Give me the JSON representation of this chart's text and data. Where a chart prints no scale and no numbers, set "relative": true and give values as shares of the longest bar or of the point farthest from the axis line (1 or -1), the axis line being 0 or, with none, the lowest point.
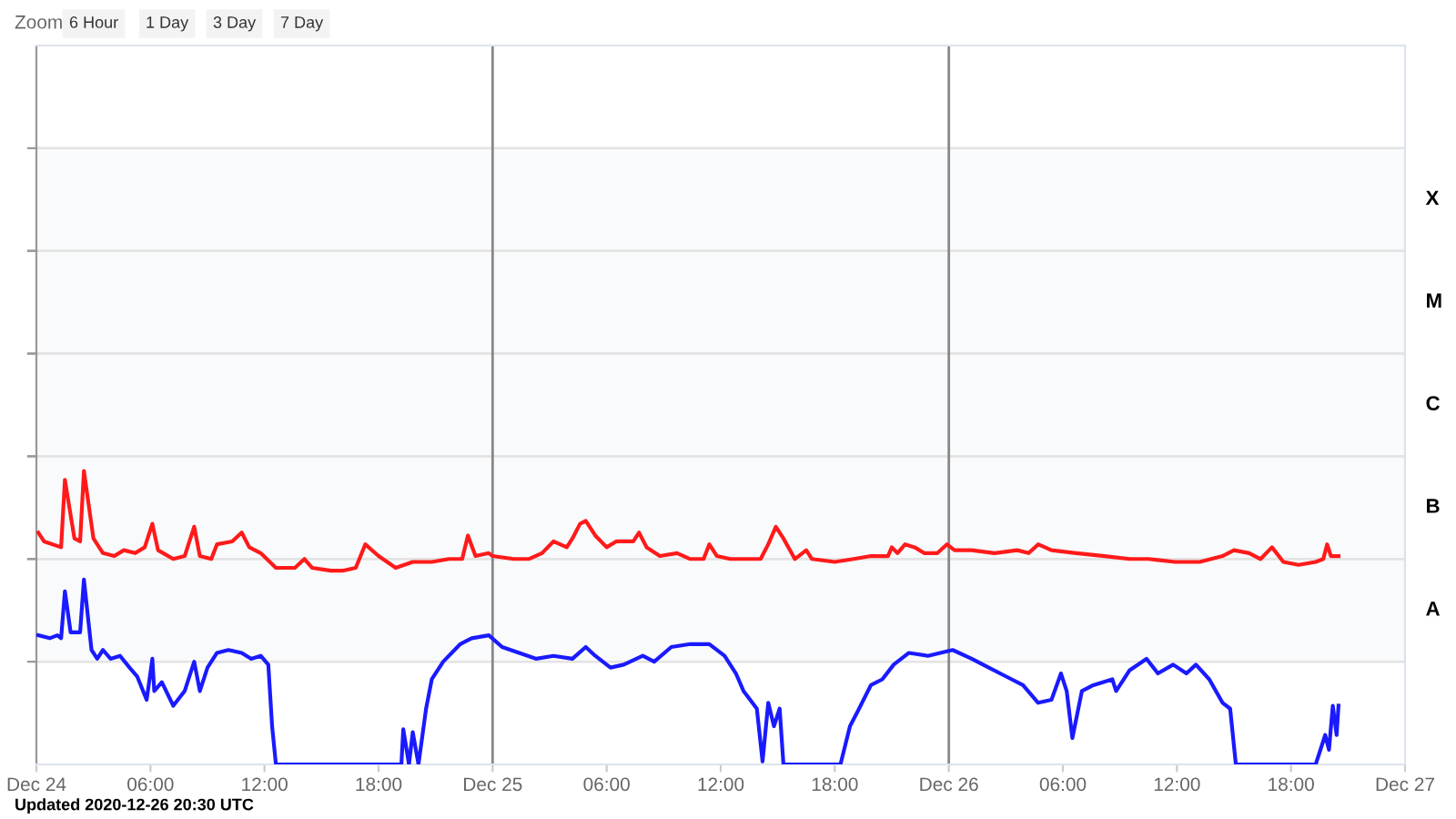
{
  "chart_data": {
    "type": "line",
    "relative": true,
    "legend": false,
    "annotations": [
      "Zoom",
      "6 Hour",
      "1 Day",
      "3 Day",
      "7 Day",
      "Updated 2020-12-26 20:30 UTC"
    ],
    "bands": [
      {
        "axis": "y",
        "from": 0.35,
        "to": 0.7,
        "label": "A",
        "color": "#f9fafc"
      },
      {
        "axis": "y",
        "from": 0.7,
        "to": 1.05,
        "label": "B",
        "color": "#f9fafc"
      },
      {
        "axis": "y",
        "from": 1.05,
        "to": 1.4,
        "label": "C",
        "color": "#f9fafc"
      },
      {
        "axis": "y",
        "from": 1.4,
        "to": 1.75,
        "label": "M",
        "color": "#f9fafc"
      },
      {
        "axis": "y",
        "from": 1.75,
        "to": 2.1,
        "label": "X",
        "color": "#f9fafc"
      }
    ],
    "xlim": [
      "2020-12-24T00:00",
      "2020-12-27T00:00"
    ],
    "xticks": [
      {
        "value": "2020-12-24T00:00",
        "label": "Dec 24"
      },
      {
        "value": "2020-12-24T06:00",
        "label": "06:00"
      },
      {
        "value": "2020-12-24T12:00",
        "label": "12:00"
      },
      {
        "value": "2020-12-24T18:00",
        "label": "18:00"
      },
      {
        "value": "2020-12-25T00:00",
        "label": "Dec 25"
      },
      {
        "value": "2020-12-25T06:00",
        "label": "06:00"
      },
      {
        "value": "2020-12-25T12:00",
        "label": "12:00"
      },
      {
        "value": "2020-12-25T18:00",
        "label": "18:00"
      },
      {
        "value": "2020-12-26T00:00",
        "label": "Dec 26"
      },
      {
        "value": "2020-12-26T06:00",
        "label": "06:00"
      },
      {
        "value": "2020-12-26T12:00",
        "label": "12:00"
      },
      {
        "value": "2020-12-26T18:00",
        "label": "18:00"
      },
      {
        "value": "2020-12-27T00:00",
        "label": "Dec 27"
      }
    ],
    "ref_lines": [
      {
        "axis": "x",
        "value": "2020-12-25T00:00",
        "color": "#888888"
      },
      {
        "axis": "x",
        "value": "2020-12-26T00:00",
        "color": "#888888"
      }
    ],
    "series": [
      {
        "color": "#ff1a1a",
        "x": [
          "2020-12-24T00:06",
          "2020-12-24T00:24",
          "2020-12-24T01:18",
          "2020-12-24T01:30",
          "2020-12-24T02:00",
          "2020-12-24T02:18",
          "2020-12-24T02:30",
          "2020-12-24T03:00",
          "2020-12-24T03:30",
          "2020-12-24T04:06",
          "2020-12-24T04:36",
          "2020-12-24T05:12",
          "2020-12-24T05:42",
          "2020-12-24T06:06",
          "2020-12-24T06:24",
          "2020-12-24T07:12",
          "2020-12-24T07:48",
          "2020-12-24T08:18",
          "2020-12-24T08:36",
          "2020-12-24T09:12",
          "2020-12-24T09:30",
          "2020-12-24T10:18",
          "2020-12-24T10:48",
          "2020-12-24T11:12",
          "2020-12-24T11:48",
          "2020-12-24T12:36",
          "2020-12-24T13:36",
          "2020-12-24T14:06",
          "2020-12-24T14:30",
          "2020-12-24T15:30",
          "2020-12-24T16:06",
          "2020-12-24T16:48",
          "2020-12-24T17:18",
          "2020-12-24T18:00",
          "2020-12-24T18:54",
          "2020-12-24T19:48",
          "2020-12-24T20:48",
          "2020-12-24T21:42",
          "2020-12-24T22:24",
          "2020-12-24T22:42",
          "2020-12-24T23:06",
          "2020-12-24T23:48",
          "2020-12-25T00:00",
          "2020-12-25T01:06",
          "2020-12-25T01:54",
          "2020-12-25T02:36",
          "2020-12-25T03:12",
          "2020-12-25T03:54",
          "2020-12-25T04:12",
          "2020-12-25T04:36",
          "2020-12-25T04:54",
          "2020-12-25T05:24",
          "2020-12-25T06:00",
          "2020-12-25T06:30",
          "2020-12-25T07:24",
          "2020-12-25T07:42",
          "2020-12-25T08:06",
          "2020-12-25T08:48",
          "2020-12-25T09:42",
          "2020-12-25T10:24",
          "2020-12-25T11:06",
          "2020-12-25T11:24",
          "2020-12-25T11:48",
          "2020-12-25T12:30",
          "2020-12-25T13:06",
          "2020-12-25T14:06",
          "2020-12-25T14:30",
          "2020-12-25T14:54",
          "2020-12-25T15:18",
          "2020-12-25T15:54",
          "2020-12-25T16:30",
          "2020-12-25T16:48",
          "2020-12-25T18:00",
          "2020-12-25T19:00",
          "2020-12-25T19:54",
          "2020-12-25T20:48",
          "2020-12-25T21:00",
          "2020-12-25T21:18",
          "2020-12-25T21:42",
          "2020-12-25T22:12",
          "2020-12-25T22:42",
          "2020-12-25T23:24",
          "2020-12-25T23:54",
          "2020-12-26T00:18",
          "2020-12-26T01:12",
          "2020-12-26T02:24",
          "2020-12-26T03:36",
          "2020-12-26T04:12",
          "2020-12-26T04:42",
          "2020-12-26T05:24",
          "2020-12-26T06:42",
          "2020-12-26T08:12",
          "2020-12-26T09:30",
          "2020-12-26T10:30",
          "2020-12-26T11:54",
          "2020-12-26T13:12",
          "2020-12-26T14:24",
          "2020-12-26T15:00",
          "2020-12-26T15:48",
          "2020-12-26T16:24",
          "2020-12-26T17:00",
          "2020-12-26T17:36",
          "2020-12-26T18:24",
          "2020-12-26T19:18",
          "2020-12-26T19:42",
          "2020-12-26T19:54",
          "2020-12-26T20:06",
          "2020-12-26T20:30"
        ],
        "values": [
          0.79,
          0.76,
          0.74,
          0.97,
          0.77,
          0.76,
          1.0,
          0.77,
          0.72,
          0.71,
          0.73,
          0.72,
          0.74,
          0.82,
          0.73,
          0.7,
          0.71,
          0.81,
          0.71,
          0.7,
          0.75,
          0.76,
          0.79,
          0.74,
          0.72,
          0.67,
          0.67,
          0.7,
          0.67,
          0.66,
          0.66,
          0.67,
          0.75,
          0.71,
          0.67,
          0.69,
          0.69,
          0.7,
          0.7,
          0.78,
          0.71,
          0.72,
          0.71,
          0.7,
          0.7,
          0.72,
          0.76,
          0.74,
          0.77,
          0.82,
          0.83,
          0.78,
          0.74,
          0.76,
          0.76,
          0.79,
          0.74,
          0.71,
          0.72,
          0.7,
          0.7,
          0.75,
          0.71,
          0.7,
          0.7,
          0.7,
          0.75,
          0.81,
          0.77,
          0.7,
          0.73,
          0.7,
          0.69,
          0.7,
          0.71,
          0.71,
          0.74,
          0.72,
          0.75,
          0.74,
          0.72,
          0.72,
          0.75,
          0.73,
          0.73,
          0.72,
          0.73,
          0.72,
          0.75,
          0.73,
          0.72,
          0.71,
          0.7,
          0.7,
          0.69,
          0.69,
          0.71,
          0.73,
          0.72,
          0.7,
          0.74,
          0.69,
          0.68,
          0.69,
          0.7,
          0.75,
          0.71,
          0.71
        ]
      },
      {
        "color": "#1a1aff",
        "x": [
          "2020-12-24T00:06",
          "2020-12-24T00:42",
          "2020-12-24T01:06",
          "2020-12-24T01:18",
          "2020-12-24T01:30",
          "2020-12-24T01:48",
          "2020-12-24T02:18",
          "2020-12-24T02:30",
          "2020-12-24T02:54",
          "2020-12-24T03:12",
          "2020-12-24T03:30",
          "2020-12-24T03:54",
          "2020-12-24T04:24",
          "2020-12-24T04:54",
          "2020-12-24T05:18",
          "2020-12-24T05:48",
          "2020-12-24T06:06",
          "2020-12-24T06:12",
          "2020-12-24T06:36",
          "2020-12-24T07:12",
          "2020-12-24T07:48",
          "2020-12-24T08:18",
          "2020-12-24T08:36",
          "2020-12-24T09:00",
          "2020-12-24T09:30",
          "2020-12-24T10:06",
          "2020-12-24T10:48",
          "2020-12-24T11:18",
          "2020-12-24T11:48",
          "2020-12-24T12:12",
          "2020-12-24T12:24",
          "2020-12-24T12:36",
          "2020-12-24T19:12",
          "2020-12-24T19:18",
          "2020-12-24T19:36",
          "2020-12-24T19:48",
          "2020-12-24T20:06",
          "2020-12-24T20:30",
          "2020-12-24T20:48",
          "2020-12-24T21:24",
          "2020-12-24T22:18",
          "2020-12-24T22:54",
          "2020-12-24T23:48",
          "2020-12-25T00:30",
          "2020-12-25T01:24",
          "2020-12-25T02:18",
          "2020-12-25T03:12",
          "2020-12-25T04:12",
          "2020-12-25T04:54",
          "2020-12-25T05:24",
          "2020-12-25T06:12",
          "2020-12-25T06:54",
          "2020-12-25T07:54",
          "2020-12-25T08:30",
          "2020-12-25T09:24",
          "2020-12-25T10:24",
          "2020-12-25T11:24",
          "2020-12-25T12:12",
          "2020-12-25T12:48",
          "2020-12-25T13:12",
          "2020-12-25T13:54",
          "2020-12-25T14:12",
          "2020-12-25T14:30",
          "2020-12-25T14:48",
          "2020-12-25T15:06",
          "2020-12-25T15:18",
          "2020-12-25T18:18",
          "2020-12-25T18:48",
          "2020-12-25T19:12",
          "2020-12-25T19:54",
          "2020-12-25T20:30",
          "2020-12-25T21:06",
          "2020-12-25T21:54",
          "2020-12-25T22:54",
          "2020-12-26T00:12",
          "2020-12-26T01:12",
          "2020-12-26T02:06",
          "2020-12-26T03:00",
          "2020-12-26T03:54",
          "2020-12-26T04:42",
          "2020-12-26T05:24",
          "2020-12-26T05:54",
          "2020-12-26T06:12",
          "2020-12-26T06:30",
          "2020-12-26T07:00",
          "2020-12-26T07:36",
          "2020-12-26T08:36",
          "2020-12-26T08:48",
          "2020-12-26T09:30",
          "2020-12-26T10:24",
          "2020-12-26T11:00",
          "2020-12-26T11:48",
          "2020-12-26T12:30",
          "2020-12-26T13:00",
          "2020-12-26T13:42",
          "2020-12-26T14:24",
          "2020-12-26T14:48",
          "2020-12-26T15:06",
          "2020-12-26T19:18",
          "2020-12-26T19:48",
          "2020-12-26T20:00",
          "2020-12-26T20:12",
          "2020-12-26T20:24",
          "2020-12-26T20:30"
        ],
        "values": [
          0.44,
          0.43,
          0.44,
          0.43,
          0.59,
          0.45,
          0.45,
          0.63,
          0.39,
          0.36,
          0.39,
          0.36,
          0.37,
          0.33,
          0.3,
          0.22,
          0.36,
          0.25,
          0.28,
          0.2,
          0.25,
          0.35,
          0.25,
          0.33,
          0.38,
          0.39,
          0.38,
          0.36,
          0.37,
          0.34,
          0.13,
          0,
          0,
          0.12,
          0,
          0.11,
          0,
          0.19,
          0.29,
          0.35,
          0.41,
          0.43,
          0.44,
          0.4,
          0.38,
          0.36,
          0.37,
          0.36,
          0.4,
          0.37,
          0.33,
          0.34,
          0.37,
          0.35,
          0.4,
          0.41,
          0.41,
          0.37,
          0.31,
          0.25,
          0.19,
          0.01,
          0.21,
          0.13,
          0.19,
          0,
          0,
          0.13,
          0.18,
          0.27,
          0.29,
          0.34,
          0.38,
          0.37,
          0.39,
          0.36,
          0.33,
          0.3,
          0.27,
          0.21,
          0.22,
          0.31,
          0.25,
          0.09,
          0.25,
          0.27,
          0.29,
          0.25,
          0.32,
          0.36,
          0.31,
          0.34,
          0.31,
          0.34,
          0.29,
          0.21,
          0.19,
          0,
          0,
          0.1,
          0.05,
          0.2,
          0.1,
          0.2
        ]
      }
    ]
  }
}
